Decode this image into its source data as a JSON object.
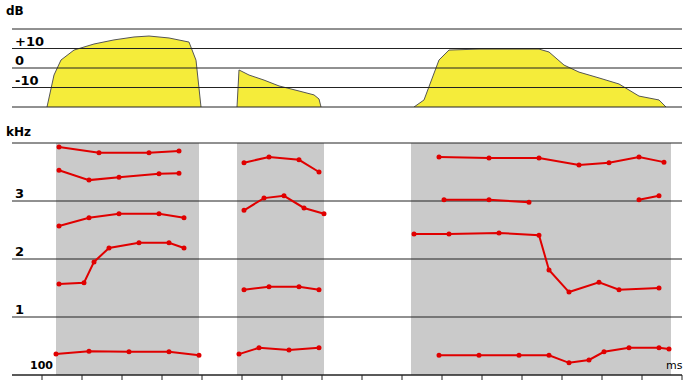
{
  "chart_data": [
    {
      "type": "area",
      "y_label": "dB",
      "color": "#f5ec3a",
      "grid": true,
      "tick_labels": "y",
      "xlim": [
        -15,
        320
      ],
      "ylim": [
        -20,
        20
      ],
      "yticks": [
        {
          "value": 10,
          "label": "+10"
        },
        0,
        -10
      ],
      "x": [
        2.5,
        6,
        9.5,
        16,
        26,
        36,
        46,
        53.5,
        63.5,
        73.5,
        77,
        79.5,
        88,
        97.5,
        98.5,
        103.5,
        111,
        118.5,
        128.5,
        136,
        138.5,
        139.5,
        160,
        186,
        191,
        198.5,
        203.5,
        218.5,
        248.5,
        253.5,
        261,
        268.5,
        278.5,
        288.5,
        298.5,
        308.5,
        312
      ],
      "values": [
        -20,
        -3.6,
        4.1,
        9.2,
        12.3,
        14.4,
        15.9,
        16.4,
        15.4,
        13.3,
        4,
        -20,
        null,
        -20,
        -1,
        -3.6,
        -6.2,
        -9.2,
        -11.8,
        -13.8,
        -15.9,
        -20,
        null,
        -20,
        -16.4,
        4.1,
        9.2,
        9.7,
        9.7,
        8.2,
        1.5,
        -2.1,
        -5.1,
        -8.2,
        -14.4,
        -16.4,
        -20
      ]
    },
    {
      "type": "line",
      "y_label": "kHz",
      "annotations": [
        "100",
        "ms"
      ],
      "grid": true,
      "tick_labels": "y",
      "marker": "o",
      "xlim": [
        -15,
        320
      ],
      "xticks": [
        0,
        20,
        40,
        60,
        80,
        100,
        120,
        140,
        160,
        180,
        200,
        220,
        240,
        260,
        280,
        300,
        320
      ],
      "ylim": [
        0,
        4
      ],
      "yticks": [
        1,
        2,
        3
      ],
      "spectrogram_segments": [
        [
          7,
          78.5
        ],
        [
          97.5,
          141
        ],
        [
          184.5,
          314.5
        ]
      ],
      "series": [
        {
          "color": "#e00000",
          "x": [
            7,
            23.5,
            43.5,
            63.5,
            78.5,
            88,
            98.5,
            108.5,
            123.5,
            138.5,
            160,
            198.5,
            218.5,
            238.5,
            253.5,
            263.5,
            273.5,
            281,
            293.5,
            308.5,
            313.5
          ],
          "values": [
            0.36,
            0.41,
            0.4,
            0.4,
            0.34,
            null,
            0.36,
            0.47,
            0.43,
            0.47,
            null,
            0.34,
            0.34,
            0.34,
            0.34,
            0.21,
            0.26,
            0.4,
            0.47,
            0.47,
            0.45
          ]
        },
        {
          "color": "#e00000",
          "x": [
            8.5,
            21,
            26,
            33.5,
            48.5,
            63.5,
            71,
            88,
            101,
            113.5,
            128.5,
            138.5,
            160,
            186,
            203.5,
            228.5,
            248.5,
            253.5,
            263.5,
            278.5,
            288.5,
            308.5
          ],
          "values": [
            1.57,
            1.59,
            1.95,
            2.19,
            2.28,
            2.28,
            2.19,
            null,
            1.47,
            1.52,
            1.52,
            1.47,
            null,
            2.43,
            2.43,
            2.45,
            2.41,
            1.81,
            1.43,
            1.6,
            1.47,
            1.5
          ]
        },
        {
          "color": "#e00000",
          "x": [
            8.5,
            23.5,
            38.5,
            58.5,
            71,
            88,
            101,
            111,
            121,
            131,
            141,
            160,
            201,
            223.5,
            243.5,
            270,
            298.5,
            308.5
          ],
          "values": [
            2.57,
            2.71,
            2.78,
            2.78,
            2.71,
            null,
            2.84,
            3.05,
            3.09,
            2.88,
            2.78,
            null,
            3.02,
            3.02,
            2.98,
            null,
            3.02,
            3.09
          ]
        },
        {
          "color": "#e00000",
          "x": [
            8.5,
            23.5,
            38.5,
            58.5,
            68.5,
            88,
            101,
            113.5,
            128.5,
            138.5,
            160,
            198.5,
            223.5,
            248.5,
            268.5,
            283.5,
            298.5,
            311
          ],
          "values": [
            3.53,
            3.36,
            3.41,
            3.47,
            3.48,
            null,
            3.66,
            3.76,
            3.71,
            3.5,
            null,
            3.76,
            3.74,
            3.74,
            3.62,
            3.66,
            3.76,
            3.67
          ]
        },
        {
          "color": "#e00000",
          "x": [
            8.5,
            28.5,
            53.5,
            68.5
          ],
          "values": [
            3.93,
            3.83,
            3.83,
            3.86
          ]
        }
      ]
    }
  ]
}
